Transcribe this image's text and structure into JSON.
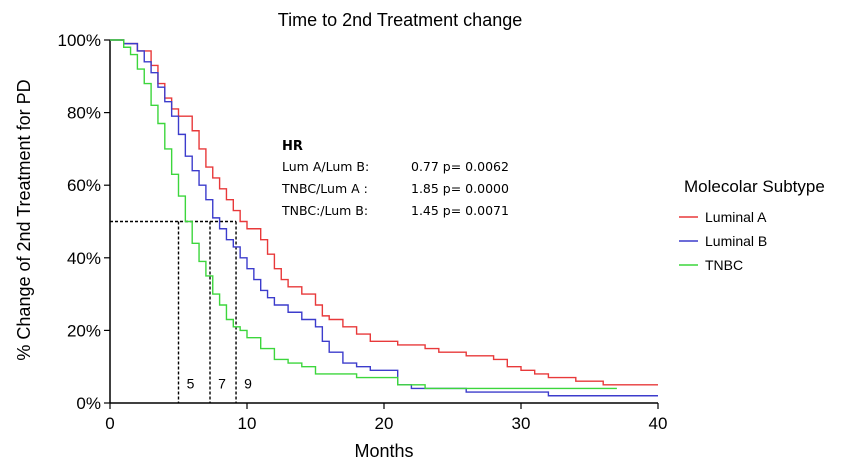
{
  "chart_data": {
    "type": "line",
    "title": "Time to 2nd Treatment change",
    "xlabel": "Months",
    "ylabel": "% Change of 2nd Treatment for PD",
    "xlim": [
      0,
      40
    ],
    "ylim": [
      0,
      100
    ],
    "x_ticks": [
      "0",
      "10",
      "20",
      "30",
      "40"
    ],
    "x_tick_values": [
      0,
      10,
      20,
      30,
      40
    ],
    "y_ticks": [
      "0%",
      "20%",
      "40%",
      "60%",
      "80%",
      "100%"
    ],
    "y_tick_values": [
      0,
      20,
      40,
      60,
      80,
      100
    ],
    "grid": false,
    "legend": {
      "title": "Molecolar Subtype",
      "position": "right"
    },
    "series": [
      {
        "name": "Luminal A",
        "color": "#e8393a",
        "points": [
          [
            0,
            100
          ],
          [
            1,
            99
          ],
          [
            2,
            97
          ],
          [
            3,
            93
          ],
          [
            3.5,
            88
          ],
          [
            4,
            84
          ],
          [
            4.5,
            81
          ],
          [
            5,
            79
          ],
          [
            6,
            75
          ],
          [
            6.5,
            70
          ],
          [
            7,
            65
          ],
          [
            7.5,
            62
          ],
          [
            8,
            59
          ],
          [
            8.5,
            56
          ],
          [
            9,
            53
          ],
          [
            9.5,
            50
          ],
          [
            10,
            48
          ],
          [
            11,
            45
          ],
          [
            11.5,
            41
          ],
          [
            12,
            37
          ],
          [
            12.5,
            34
          ],
          [
            13,
            32
          ],
          [
            14,
            30
          ],
          [
            15,
            27
          ],
          [
            15.5,
            24
          ],
          [
            16,
            23
          ],
          [
            17,
            21
          ],
          [
            18,
            19
          ],
          [
            19,
            17
          ],
          [
            20,
            17
          ],
          [
            21,
            16
          ],
          [
            22,
            16
          ],
          [
            23,
            15
          ],
          [
            24,
            14
          ],
          [
            25,
            14
          ],
          [
            26,
            13
          ],
          [
            27,
            13
          ],
          [
            28,
            12
          ],
          [
            29,
            10
          ],
          [
            30,
            9
          ],
          [
            31,
            8
          ],
          [
            32,
            7
          ],
          [
            33,
            7
          ],
          [
            34,
            6
          ],
          [
            35,
            6
          ],
          [
            36,
            5
          ],
          [
            37,
            5
          ],
          [
            40,
            5
          ]
        ]
      },
      {
        "name": "Luminal B",
        "color": "#3c3ccc",
        "points": [
          [
            0,
            100
          ],
          [
            1,
            99
          ],
          [
            2,
            97
          ],
          [
            2.5,
            94
          ],
          [
            3,
            91
          ],
          [
            3.5,
            87
          ],
          [
            4,
            83
          ],
          [
            4.5,
            79
          ],
          [
            5,
            74
          ],
          [
            5.5,
            68
          ],
          [
            6,
            64
          ],
          [
            6.5,
            60
          ],
          [
            7,
            56
          ],
          [
            7.5,
            51
          ],
          [
            8,
            48
          ],
          [
            8.5,
            45
          ],
          [
            9,
            43
          ],
          [
            9.5,
            40
          ],
          [
            10,
            37
          ],
          [
            10.5,
            34
          ],
          [
            11,
            31
          ],
          [
            11.5,
            29
          ],
          [
            12,
            27
          ],
          [
            13,
            25
          ],
          [
            14,
            23
          ],
          [
            15,
            21
          ],
          [
            15.5,
            17
          ],
          [
            16,
            14
          ],
          [
            17,
            11
          ],
          [
            18,
            10
          ],
          [
            19,
            9
          ],
          [
            20,
            9
          ],
          [
            21,
            5
          ],
          [
            22,
            4
          ],
          [
            24,
            4
          ],
          [
            26,
            3
          ],
          [
            28,
            3
          ],
          [
            30,
            3
          ],
          [
            32,
            2
          ],
          [
            34,
            2
          ],
          [
            36,
            2
          ],
          [
            40,
            2
          ]
        ]
      },
      {
        "name": "TNBC",
        "color": "#3cd63c",
        "points": [
          [
            0,
            100
          ],
          [
            1,
            98
          ],
          [
            1.5,
            96
          ],
          [
            2,
            92
          ],
          [
            2.5,
            88
          ],
          [
            3,
            82
          ],
          [
            3.5,
            77
          ],
          [
            4,
            70
          ],
          [
            4.5,
            63
          ],
          [
            5,
            57
          ],
          [
            5.5,
            50
          ],
          [
            6,
            44
          ],
          [
            6.5,
            39
          ],
          [
            7,
            35
          ],
          [
            7.5,
            30
          ],
          [
            8,
            27
          ],
          [
            8.5,
            23
          ],
          [
            9,
            21
          ],
          [
            9.5,
            20
          ],
          [
            10,
            18
          ],
          [
            11,
            15
          ],
          [
            12,
            12
          ],
          [
            13,
            11
          ],
          [
            14,
            10
          ],
          [
            15,
            8
          ],
          [
            16,
            8
          ],
          [
            18,
            7
          ],
          [
            20,
            7
          ],
          [
            21,
            5
          ],
          [
            22,
            5
          ],
          [
            23,
            4
          ],
          [
            24,
            4
          ],
          [
            26,
            4
          ],
          [
            28,
            4
          ],
          [
            30,
            4
          ],
          [
            35,
            4
          ],
          [
            37,
            4
          ]
        ]
      }
    ],
    "annotations": {
      "hr_title": "HR",
      "hr_rows": [
        {
          "label": "Lum A/Lum B:",
          "value": "0.77 p= 0.0062"
        },
        {
          "label": "TNBC/Lum A :",
          "value": "1.85 p= 0.0000"
        },
        {
          "label": "TNBC:/Lum B:",
          "value": "1.45 p= 0.0071"
        }
      ],
      "medians": [
        {
          "label": "5",
          "x": 5
        },
        {
          "label": "7",
          "x": 7.3
        },
        {
          "label": "9",
          "x": 9.2
        }
      ],
      "median_y": 50
    }
  }
}
